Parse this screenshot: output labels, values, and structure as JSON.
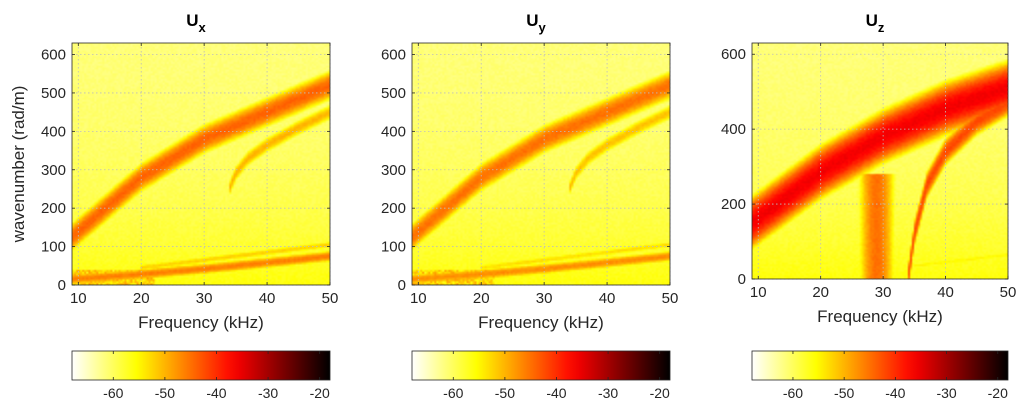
{
  "chart_data": [
    {
      "type": "heatmap",
      "title": "U",
      "title_subscript": "x",
      "xlabel": "Frequency (kHz)",
      "ylabel": "wavenumber (rad/m)",
      "xlim": [
        9,
        50
      ],
      "ylim": [
        0,
        630
      ],
      "xticks": [
        "10",
        "20",
        "30",
        "40",
        "50"
      ],
      "yticks": [
        "0",
        "100",
        "200",
        "300",
        "400",
        "500",
        "600"
      ],
      "grid": true,
      "colorbar": {
        "orientation": "horizontal",
        "location": "below",
        "range": [
          -68,
          -18
        ],
        "ticks": [
          "-60",
          "-50",
          "-40",
          "-30",
          "-20"
        ],
        "colormap": "hot (reversed)"
      },
      "features": [
        {
          "kind": "branch",
          "x": [
            9,
            20,
            30,
            40,
            50
          ],
          "y": [
            125,
            280,
            380,
            450,
            520
          ],
          "peak": -44,
          "width": 38
        },
        {
          "kind": "branch",
          "x": [
            34,
            35,
            37,
            40,
            45,
            50
          ],
          "y": [
            250,
            290,
            330,
            365,
            410,
            450
          ],
          "peak": -50,
          "width": 24
        },
        {
          "kind": "branch",
          "x": [
            9,
            20,
            30,
            40,
            50
          ],
          "y": [
            15,
            28,
            42,
            58,
            75
          ],
          "peak": -46,
          "width": 16
        },
        {
          "kind": "branch",
          "x": [
            20,
            30,
            40,
            50
          ],
          "y": [
            45,
            65,
            85,
            105
          ],
          "peak": -52,
          "width": 12
        },
        {
          "kind": "noise_floor_band",
          "x_range": [
            9,
            22
          ],
          "y_max": 40,
          "peak": -48
        }
      ]
    },
    {
      "type": "heatmap",
      "title": "U",
      "title_subscript": "y",
      "xlabel": "Frequency (kHz)",
      "ylabel": "",
      "xlim": [
        9,
        50
      ],
      "ylim": [
        0,
        630
      ],
      "xticks": [
        "10",
        "20",
        "30",
        "40",
        "50"
      ],
      "yticks": [
        "0",
        "100",
        "200",
        "300",
        "400",
        "500",
        "600"
      ],
      "grid": true,
      "colorbar": {
        "orientation": "horizontal",
        "location": "below",
        "range": [
          -68,
          -18
        ],
        "ticks": [
          "-60",
          "-50",
          "-40",
          "-30",
          "-20"
        ],
        "colormap": "hot (reversed)"
      },
      "features": [
        {
          "kind": "branch",
          "x": [
            9,
            20,
            30,
            40,
            50
          ],
          "y": [
            125,
            280,
            380,
            450,
            520
          ],
          "peak": -45,
          "width": 38
        },
        {
          "kind": "branch",
          "x": [
            34,
            35,
            37,
            40,
            45,
            50
          ],
          "y": [
            250,
            290,
            330,
            365,
            410,
            450
          ],
          "peak": -51,
          "width": 24
        },
        {
          "kind": "branch",
          "x": [
            9,
            20,
            30,
            40,
            50
          ],
          "y": [
            15,
            28,
            42,
            58,
            75
          ],
          "peak": -47,
          "width": 16
        },
        {
          "kind": "branch",
          "x": [
            20,
            30,
            40,
            50
          ],
          "y": [
            45,
            65,
            85,
            105
          ],
          "peak": -53,
          "width": 12
        },
        {
          "kind": "noise_floor_band",
          "x_range": [
            9,
            22
          ],
          "y_max": 40,
          "peak": -48
        }
      ]
    },
    {
      "type": "heatmap",
      "title": "U",
      "title_subscript": "z",
      "xlabel": "Frequency (kHz)",
      "ylabel": "",
      "xlim": [
        9,
        50
      ],
      "ylim": [
        0,
        630
      ],
      "xticks": [
        "10",
        "20",
        "30",
        "40",
        "50"
      ],
      "yticks": [
        "0",
        "200",
        "400",
        "600"
      ],
      "grid": true,
      "colorbar": {
        "orientation": "horizontal",
        "location": "below",
        "range": [
          -68,
          -18
        ],
        "ticks": [
          "-60",
          "-50",
          "-40",
          "-30",
          "-20"
        ],
        "colormap": "hot (reversed)"
      },
      "features": [
        {
          "kind": "branch",
          "x": [
            9,
            20,
            30,
            40,
            50
          ],
          "y": [
            150,
            285,
            380,
            455,
            510
          ],
          "peak": -36,
          "width": 60
        },
        {
          "kind": "branch",
          "x": [
            34,
            35,
            37,
            40,
            45,
            50
          ],
          "y": [
            0,
            120,
            250,
            340,
            420,
            470
          ],
          "peak": -42,
          "width": 35
        },
        {
          "kind": "vertical_band",
          "x_center": 29,
          "x_halfwidth": 2.5,
          "y_max": 280,
          "peak": -45
        },
        {
          "kind": "branch",
          "x": [
            35,
            40,
            45,
            50
          ],
          "y": [
            35,
            45,
            55,
            65
          ],
          "peak": -55,
          "width": 12
        }
      ]
    }
  ]
}
